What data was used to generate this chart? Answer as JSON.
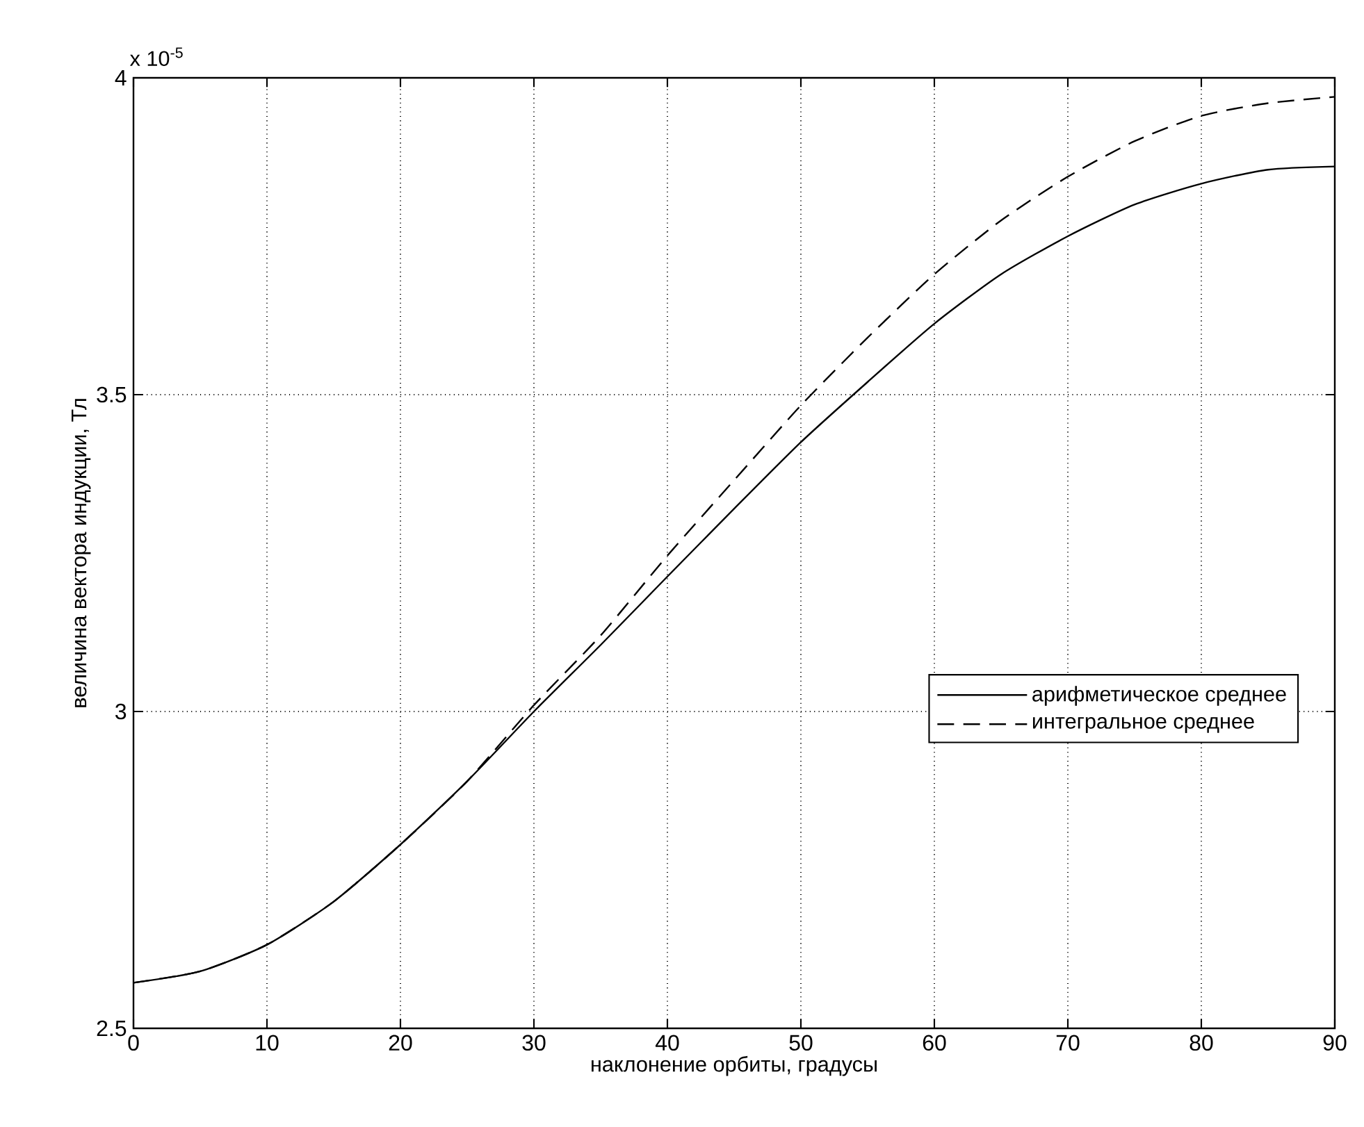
{
  "chart_data": {
    "type": "line",
    "xlabel": "наклонение орбиты, градусы",
    "ylabel": "величина вектора индукции, Тл",
    "annotations": [
      "x 10$^{-5}$"
    ],
    "x": [
      0,
      5,
      10,
      15,
      20,
      25,
      30,
      35,
      40,
      45,
      50,
      55,
      60,
      65,
      70,
      75,
      80,
      85,
      90
    ],
    "series": [
      {
        "name": "арифметическое среднее",
        "color": "#000000",
        "line_style": "solid",
        "values": [
          2.572,
          2.59,
          2.632,
          2.7,
          2.79,
          2.89,
          3.0,
          3.105,
          3.213,
          3.32,
          3.425,
          3.52,
          3.612,
          3.69,
          3.75,
          3.8,
          3.833,
          3.855,
          3.86
        ]
      },
      {
        "name": "интегральное среднее",
        "color": "#000000",
        "line_style": "dashed",
        "values": [
          2.572,
          2.59,
          2.632,
          2.7,
          2.79,
          2.89,
          3.01,
          3.12,
          3.246,
          3.365,
          3.483,
          3.59,
          3.69,
          3.775,
          3.844,
          3.9,
          3.94,
          3.96,
          3.97
        ]
      }
    ],
    "xlim": [
      0,
      90
    ],
    "ylim": [
      2.5,
      4
    ],
    "xticks": [
      0,
      10,
      20,
      30,
      40,
      50,
      60,
      70,
      80,
      90
    ],
    "yticks": [
      2.5,
      3,
      3.5,
      4
    ],
    "grid": true,
    "legend": "bottom right"
  }
}
